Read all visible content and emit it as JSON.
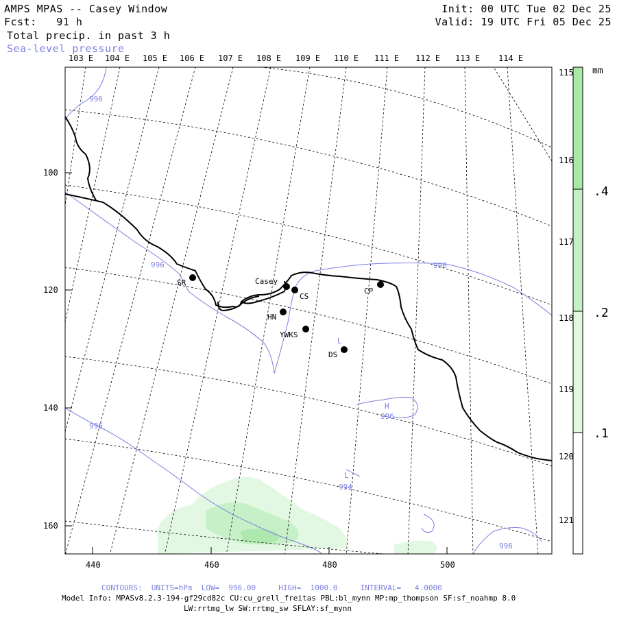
{
  "header": {
    "title": "AMPS MPAS -- Casey Window",
    "forecast": "Fcst:   91 h",
    "field": "Total precip. in past 3 h",
    "overlay": "Sea-level pressure",
    "init": "Init: 00 UTC Tue 02 Dec 25",
    "valid": "Valid: 19 UTC Fri 05 Dec 25"
  },
  "colors": {
    "coast": "#000000",
    "isobar": "#7b7fe0",
    "grid": "#000000",
    "precip_light": "#e0f8e0",
    "precip_mid": "#c4f0c4",
    "precip_high": "#a8e8a8"
  },
  "top_lon_labels": [
    "103 E",
    "104 E",
    "105 E",
    "106 E",
    "107 E",
    "108 E",
    "109 E",
    "110 E",
    "111 E",
    "112 E",
    "113 E",
    "114 E"
  ],
  "right_lon_labels": [
    "115 E",
    "116 E",
    "117 E",
    "118 E",
    "119 E",
    "120 E",
    "121 E"
  ],
  "x_axis": {
    "ticks": [
      "440",
      "460",
      "480",
      "500"
    ]
  },
  "y_axis": {
    "ticks": [
      "100",
      "120",
      "140",
      "160"
    ]
  },
  "colorbar": {
    "unit": "mm",
    "labels": [
      ".4",
      ".2",
      ".1"
    ]
  },
  "stations": [
    {
      "code": "SR"
    },
    {
      "code": "Casey"
    },
    {
      "code": "CS"
    },
    {
      "code": "CP"
    },
    {
      "code": "HN"
    },
    {
      "code": "YWKS"
    },
    {
      "code": "DS"
    }
  ],
  "pressure_labels": [
    "996",
    "996",
    "996",
    "996",
    "996",
    "994",
    "996"
  ],
  "pressure_extrema": [
    "L",
    "H",
    "L"
  ],
  "footer": {
    "contours": "CONTOURS:  UNITS=hPa  LOW=  996.00     HIGH=  1000.0     INTERVAL=   4.0000",
    "model_info": "Model Info: MPASv8.2.3-194-gf29cd82c CU:cu_grell_freitas PBL:bl_mynn MP:mp_thompson SF:sf_noahmp 8.0",
    "physics": "LW:rrtmg_lw SW:rrtmg_sw SFLAY:sf_mynn"
  }
}
